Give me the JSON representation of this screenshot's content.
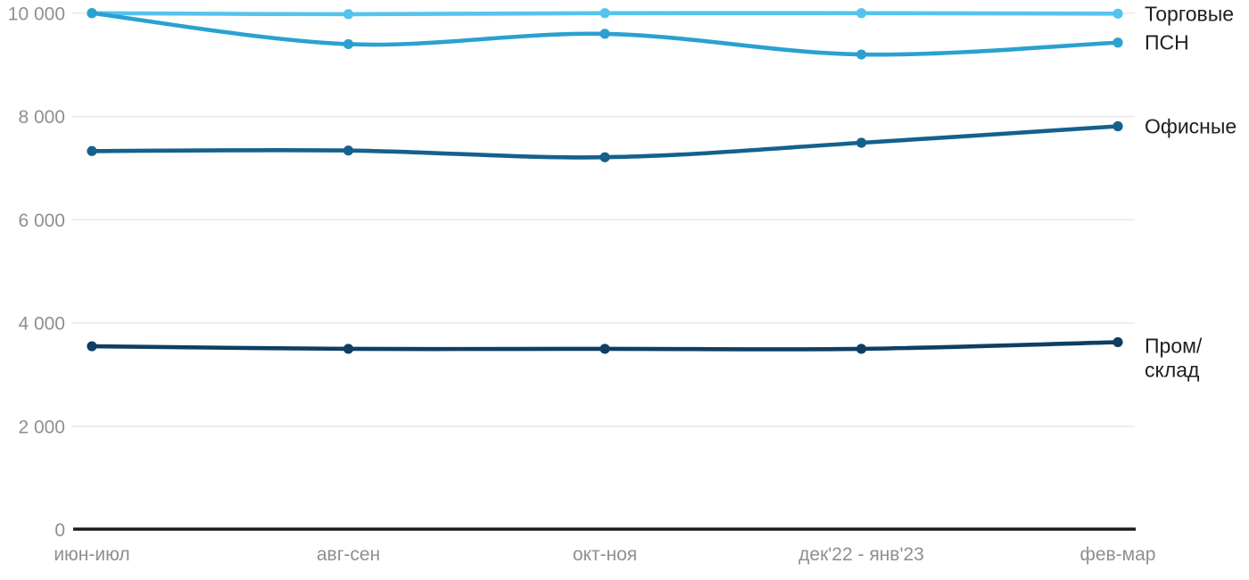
{
  "chart_data": {
    "type": "line",
    "title": "",
    "categories": [
      "июн-июл",
      "авг-сен",
      "окт-ноя",
      "дек'22 - янв'23",
      "фев-мар"
    ],
    "series": [
      {
        "id": "torgovye",
        "name": "Торговые",
        "legend_lines": [
          "Торговые"
        ],
        "color": "#55C3EE",
        "values": [
          10000,
          9980,
          10000,
          10000,
          9990
        ]
      },
      {
        "id": "psn",
        "name": "ПСН",
        "legend_lines": [
          "ПСН"
        ],
        "color": "#2AA1D0",
        "values": [
          10000,
          9400,
          9600,
          9200,
          9430
        ]
      },
      {
        "id": "ofisnye",
        "name": "Офисные",
        "legend_lines": [
          "Офисные"
        ],
        "color": "#14618C",
        "values": [
          7330,
          7340,
          7210,
          7490,
          7810
        ]
      },
      {
        "id": "prom-sklad",
        "name": "Пром/склад",
        "legend_lines": [
          "Пром/",
          "склад"
        ],
        "color": "#0E3E63",
        "values": [
          3550,
          3500,
          3500,
          3500,
          3630
        ]
      }
    ],
    "y_axis": {
      "ticks": [
        0,
        2000,
        4000,
        6000,
        8000,
        10000
      ],
      "tick_labels": [
        "0",
        "2 000",
        "4 000",
        "6 000",
        "8 000",
        "10 000"
      ],
      "range": [
        0,
        10000
      ]
    },
    "x_axis": {
      "labels": [
        "июн-июл",
        "авг-сен",
        "окт-ноя",
        "дек'22 - янв'23",
        "фев-мар"
      ]
    },
    "grid": "horizontal-only",
    "legend_position": "right-of-line-ends"
  },
  "colors": {
    "background": "#FFFFFF",
    "gridline": "#E8E8E8",
    "axis_line": "#1A1A1A",
    "axis_text": "#8F8F8F",
    "legend_text": "#1F1F1F"
  }
}
